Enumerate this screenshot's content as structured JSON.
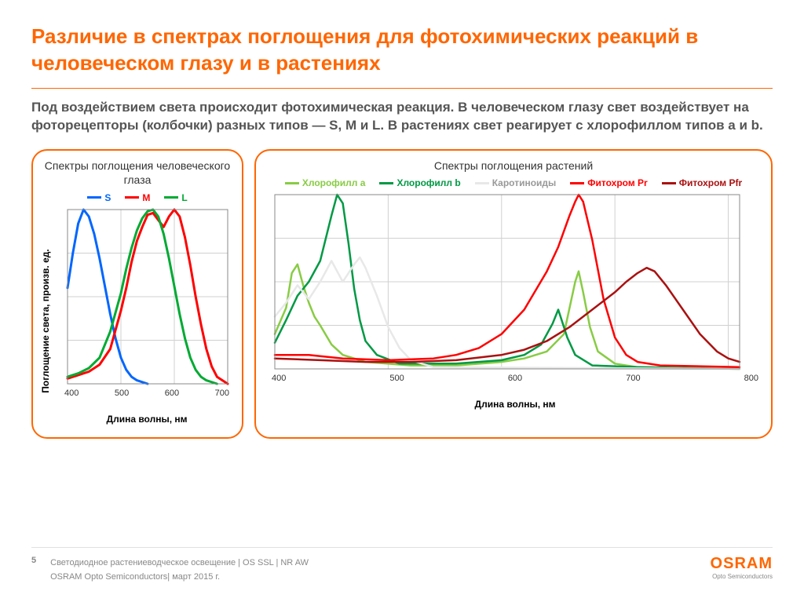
{
  "title": "Различие в спектрах поглощения для фотохимических реакций в человеческом глазу и в растениях",
  "subtitle": "Под воздействием света происходит фотохимическая реакция. В человеческом глазу свет воздействует на фоторецепторы (колбочки) разных типов — S, M и L. В растениях свет реагирует с хлорофиллом типов a и b.",
  "eye_chart": {
    "panel_title": "Спектры поглощения человеческого глаза",
    "type": "line",
    "y_label": "Поглощение света, произв. ед.",
    "x_label": "Длина волны, нм",
    "xlim": [
      400,
      700
    ],
    "x_ticks": [
      "400",
      "500",
      "600",
      "700"
    ],
    "series": [
      {
        "name": "S",
        "color": "#0066ff",
        "line_width": 3,
        "points": [
          [
            400,
            0.55
          ],
          [
            410,
            0.75
          ],
          [
            420,
            0.92
          ],
          [
            430,
            1.0
          ],
          [
            440,
            0.96
          ],
          [
            450,
            0.86
          ],
          [
            460,
            0.72
          ],
          [
            470,
            0.56
          ],
          [
            480,
            0.4
          ],
          [
            490,
            0.26
          ],
          [
            500,
            0.15
          ],
          [
            510,
            0.08
          ],
          [
            520,
            0.04
          ],
          [
            530,
            0.02
          ],
          [
            540,
            0.01
          ],
          [
            550,
            0.0
          ]
        ]
      },
      {
        "name": "M",
        "color": "#ff0000",
        "line_width": 3,
        "points": [
          [
            400,
            0.03
          ],
          [
            420,
            0.05
          ],
          [
            440,
            0.07
          ],
          [
            460,
            0.11
          ],
          [
            480,
            0.2
          ],
          [
            500,
            0.42
          ],
          [
            510,
            0.55
          ],
          [
            520,
            0.7
          ],
          [
            530,
            0.82
          ],
          [
            540,
            0.9
          ],
          [
            550,
            0.97
          ],
          [
            560,
            0.98
          ],
          [
            570,
            0.94
          ],
          [
            580,
            0.9
          ],
          [
            590,
            0.96
          ],
          [
            600,
            1.0
          ],
          [
            610,
            0.96
          ],
          [
            620,
            0.84
          ],
          [
            630,
            0.68
          ],
          [
            640,
            0.5
          ],
          [
            650,
            0.34
          ],
          [
            660,
            0.2
          ],
          [
            670,
            0.1
          ],
          [
            680,
            0.04
          ],
          [
            700,
            0.0
          ]
        ]
      },
      {
        "name": "L",
        "color": "#00aa33",
        "line_width": 3,
        "points": [
          [
            400,
            0.04
          ],
          [
            420,
            0.06
          ],
          [
            440,
            0.09
          ],
          [
            460,
            0.15
          ],
          [
            480,
            0.3
          ],
          [
            500,
            0.52
          ],
          [
            510,
            0.66
          ],
          [
            520,
            0.78
          ],
          [
            530,
            0.88
          ],
          [
            540,
            0.95
          ],
          [
            550,
            0.99
          ],
          [
            560,
            1.0
          ],
          [
            570,
            0.96
          ],
          [
            580,
            0.86
          ],
          [
            590,
            0.72
          ],
          [
            600,
            0.56
          ],
          [
            610,
            0.4
          ],
          [
            620,
            0.26
          ],
          [
            630,
            0.15
          ],
          [
            640,
            0.08
          ],
          [
            650,
            0.04
          ],
          [
            660,
            0.02
          ],
          [
            680,
            0.0
          ]
        ]
      }
    ],
    "grid_color": "#d0d0d0",
    "axis_color": "#888888",
    "background_color": "#ffffff"
  },
  "plant_chart": {
    "panel_title": "Спектры поглощения растений",
    "type": "line",
    "y_label": "",
    "x_label": "Длина волны, нм",
    "xlim": [
      400,
      810
    ],
    "x_ticks": [
      "400",
      "500",
      "600",
      "700",
      "800"
    ],
    "series": [
      {
        "name": "Хлорофилл a",
        "color": "#88cc44",
        "line_width": 2.5,
        "points": [
          [
            400,
            0.2
          ],
          [
            410,
            0.35
          ],
          [
            415,
            0.55
          ],
          [
            420,
            0.6
          ],
          [
            425,
            0.48
          ],
          [
            430,
            0.38
          ],
          [
            435,
            0.3
          ],
          [
            440,
            0.25
          ],
          [
            450,
            0.14
          ],
          [
            460,
            0.08
          ],
          [
            480,
            0.04
          ],
          [
            520,
            0.02
          ],
          [
            560,
            0.02
          ],
          [
            600,
            0.04
          ],
          [
            620,
            0.06
          ],
          [
            640,
            0.1
          ],
          [
            655,
            0.2
          ],
          [
            660,
            0.35
          ],
          [
            665,
            0.5
          ],
          [
            668,
            0.56
          ],
          [
            672,
            0.44
          ],
          [
            678,
            0.24
          ],
          [
            685,
            0.1
          ],
          [
            700,
            0.03
          ],
          [
            720,
            0.01
          ],
          [
            810,
            0.0
          ]
        ]
      },
      {
        "name": "Хлорофилл b",
        "color": "#009944",
        "line_width": 2.5,
        "points": [
          [
            400,
            0.15
          ],
          [
            410,
            0.28
          ],
          [
            420,
            0.42
          ],
          [
            430,
            0.5
          ],
          [
            440,
            0.62
          ],
          [
            450,
            0.88
          ],
          [
            455,
            1.0
          ],
          [
            460,
            0.95
          ],
          [
            465,
            0.72
          ],
          [
            470,
            0.46
          ],
          [
            475,
            0.28
          ],
          [
            480,
            0.16
          ],
          [
            490,
            0.08
          ],
          [
            510,
            0.03
          ],
          [
            560,
            0.03
          ],
          [
            600,
            0.05
          ],
          [
            620,
            0.08
          ],
          [
            635,
            0.14
          ],
          [
            645,
            0.26
          ],
          [
            650,
            0.34
          ],
          [
            652,
            0.3
          ],
          [
            658,
            0.18
          ],
          [
            665,
            0.08
          ],
          [
            680,
            0.02
          ],
          [
            720,
            0.01
          ],
          [
            810,
            0.0
          ]
        ]
      },
      {
        "name": "Каротиноиды",
        "color": "#e8e8e8",
        "line_width": 2.5,
        "points": [
          [
            400,
            0.3
          ],
          [
            410,
            0.38
          ],
          [
            420,
            0.48
          ],
          [
            430,
            0.4
          ],
          [
            440,
            0.5
          ],
          [
            450,
            0.62
          ],
          [
            455,
            0.56
          ],
          [
            460,
            0.5
          ],
          [
            470,
            0.6
          ],
          [
            475,
            0.64
          ],
          [
            480,
            0.58
          ],
          [
            490,
            0.42
          ],
          [
            500,
            0.24
          ],
          [
            510,
            0.12
          ],
          [
            520,
            0.05
          ],
          [
            540,
            0.01
          ],
          [
            810,
            0.0
          ]
        ]
      },
      {
        "name": "Фитохром Pr",
        "color": "#ff0000",
        "line_width": 2.5,
        "points": [
          [
            400,
            0.08
          ],
          [
            430,
            0.08
          ],
          [
            460,
            0.06
          ],
          [
            500,
            0.05
          ],
          [
            540,
            0.06
          ],
          [
            560,
            0.08
          ],
          [
            580,
            0.12
          ],
          [
            600,
            0.2
          ],
          [
            620,
            0.34
          ],
          [
            640,
            0.56
          ],
          [
            650,
            0.7
          ],
          [
            660,
            0.88
          ],
          [
            665,
            0.96
          ],
          [
            668,
            1.0
          ],
          [
            672,
            0.96
          ],
          [
            680,
            0.74
          ],
          [
            690,
            0.4
          ],
          [
            700,
            0.18
          ],
          [
            710,
            0.08
          ],
          [
            720,
            0.04
          ],
          [
            740,
            0.02
          ],
          [
            810,
            0.01
          ]
        ]
      },
      {
        "name": "Фитохром Pfr",
        "color": "#aa1111",
        "line_width": 2.5,
        "points": [
          [
            400,
            0.06
          ],
          [
            440,
            0.05
          ],
          [
            480,
            0.04
          ],
          [
            520,
            0.04
          ],
          [
            560,
            0.05
          ],
          [
            600,
            0.08
          ],
          [
            620,
            0.11
          ],
          [
            640,
            0.16
          ],
          [
            660,
            0.24
          ],
          [
            680,
            0.34
          ],
          [
            700,
            0.44
          ],
          [
            710,
            0.5
          ],
          [
            720,
            0.55
          ],
          [
            728,
            0.58
          ],
          [
            735,
            0.56
          ],
          [
            745,
            0.48
          ],
          [
            760,
            0.34
          ],
          [
            775,
            0.2
          ],
          [
            790,
            0.1
          ],
          [
            800,
            0.06
          ],
          [
            810,
            0.04
          ]
        ]
      }
    ],
    "grid_color": "#d0d0d0",
    "axis_color": "#888888",
    "background_color": "#ffffff"
  },
  "footer": {
    "page_num": "5",
    "line1": "Светодиодное растениеводческое освещение | OS SSL | NR AW",
    "line2": "OSRAM  Opto Semiconductors| март 2015 г."
  },
  "logo": {
    "main": "OSRAM",
    "sub": "Opto Semiconductors"
  }
}
